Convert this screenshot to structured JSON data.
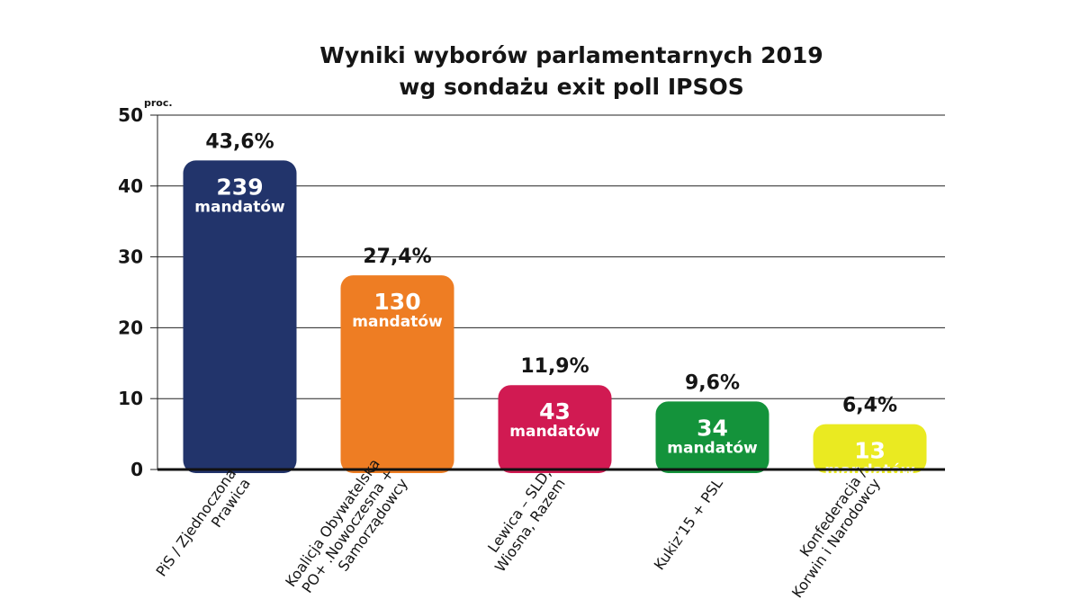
{
  "chart_data": {
    "type": "bar",
    "title": "Wyniki wyborów parlamentarnych 2019",
    "subtitle": "wg sondażu exit poll IPSOS",
    "ylabel": "proc.",
    "xlabel": "",
    "ylim": [
      0,
      50
    ],
    "yticks": [
      "0",
      "10",
      "20",
      "30",
      "40",
      "50"
    ],
    "grid": true,
    "seats_unit": "mandatów",
    "categories": [
      [
        "PiS / Zjednoczona",
        "Prawica"
      ],
      [
        "Koalicja Obywatelska",
        "PO+ .Nowoczesna +",
        "Samorządowcy"
      ],
      [
        "Lewica – SLD,",
        "Wiosna, Razem"
      ],
      [
        "Kukiz’15 + PSL"
      ],
      [
        "Konfederacja /",
        "Korwin i Narodowcy"
      ]
    ],
    "values": [
      43.6,
      27.4,
      11.9,
      9.6,
      6.4
    ],
    "value_labels": [
      "43,6%",
      "27,4%",
      "11,9%",
      "9,6%",
      "6,4%"
    ],
    "seats": [
      "239",
      "130",
      "43",
      "34",
      "13"
    ],
    "colors": [
      "#22346b",
      "#ee7d23",
      "#d11a52",
      "#14933b",
      "#eaea21"
    ]
  }
}
